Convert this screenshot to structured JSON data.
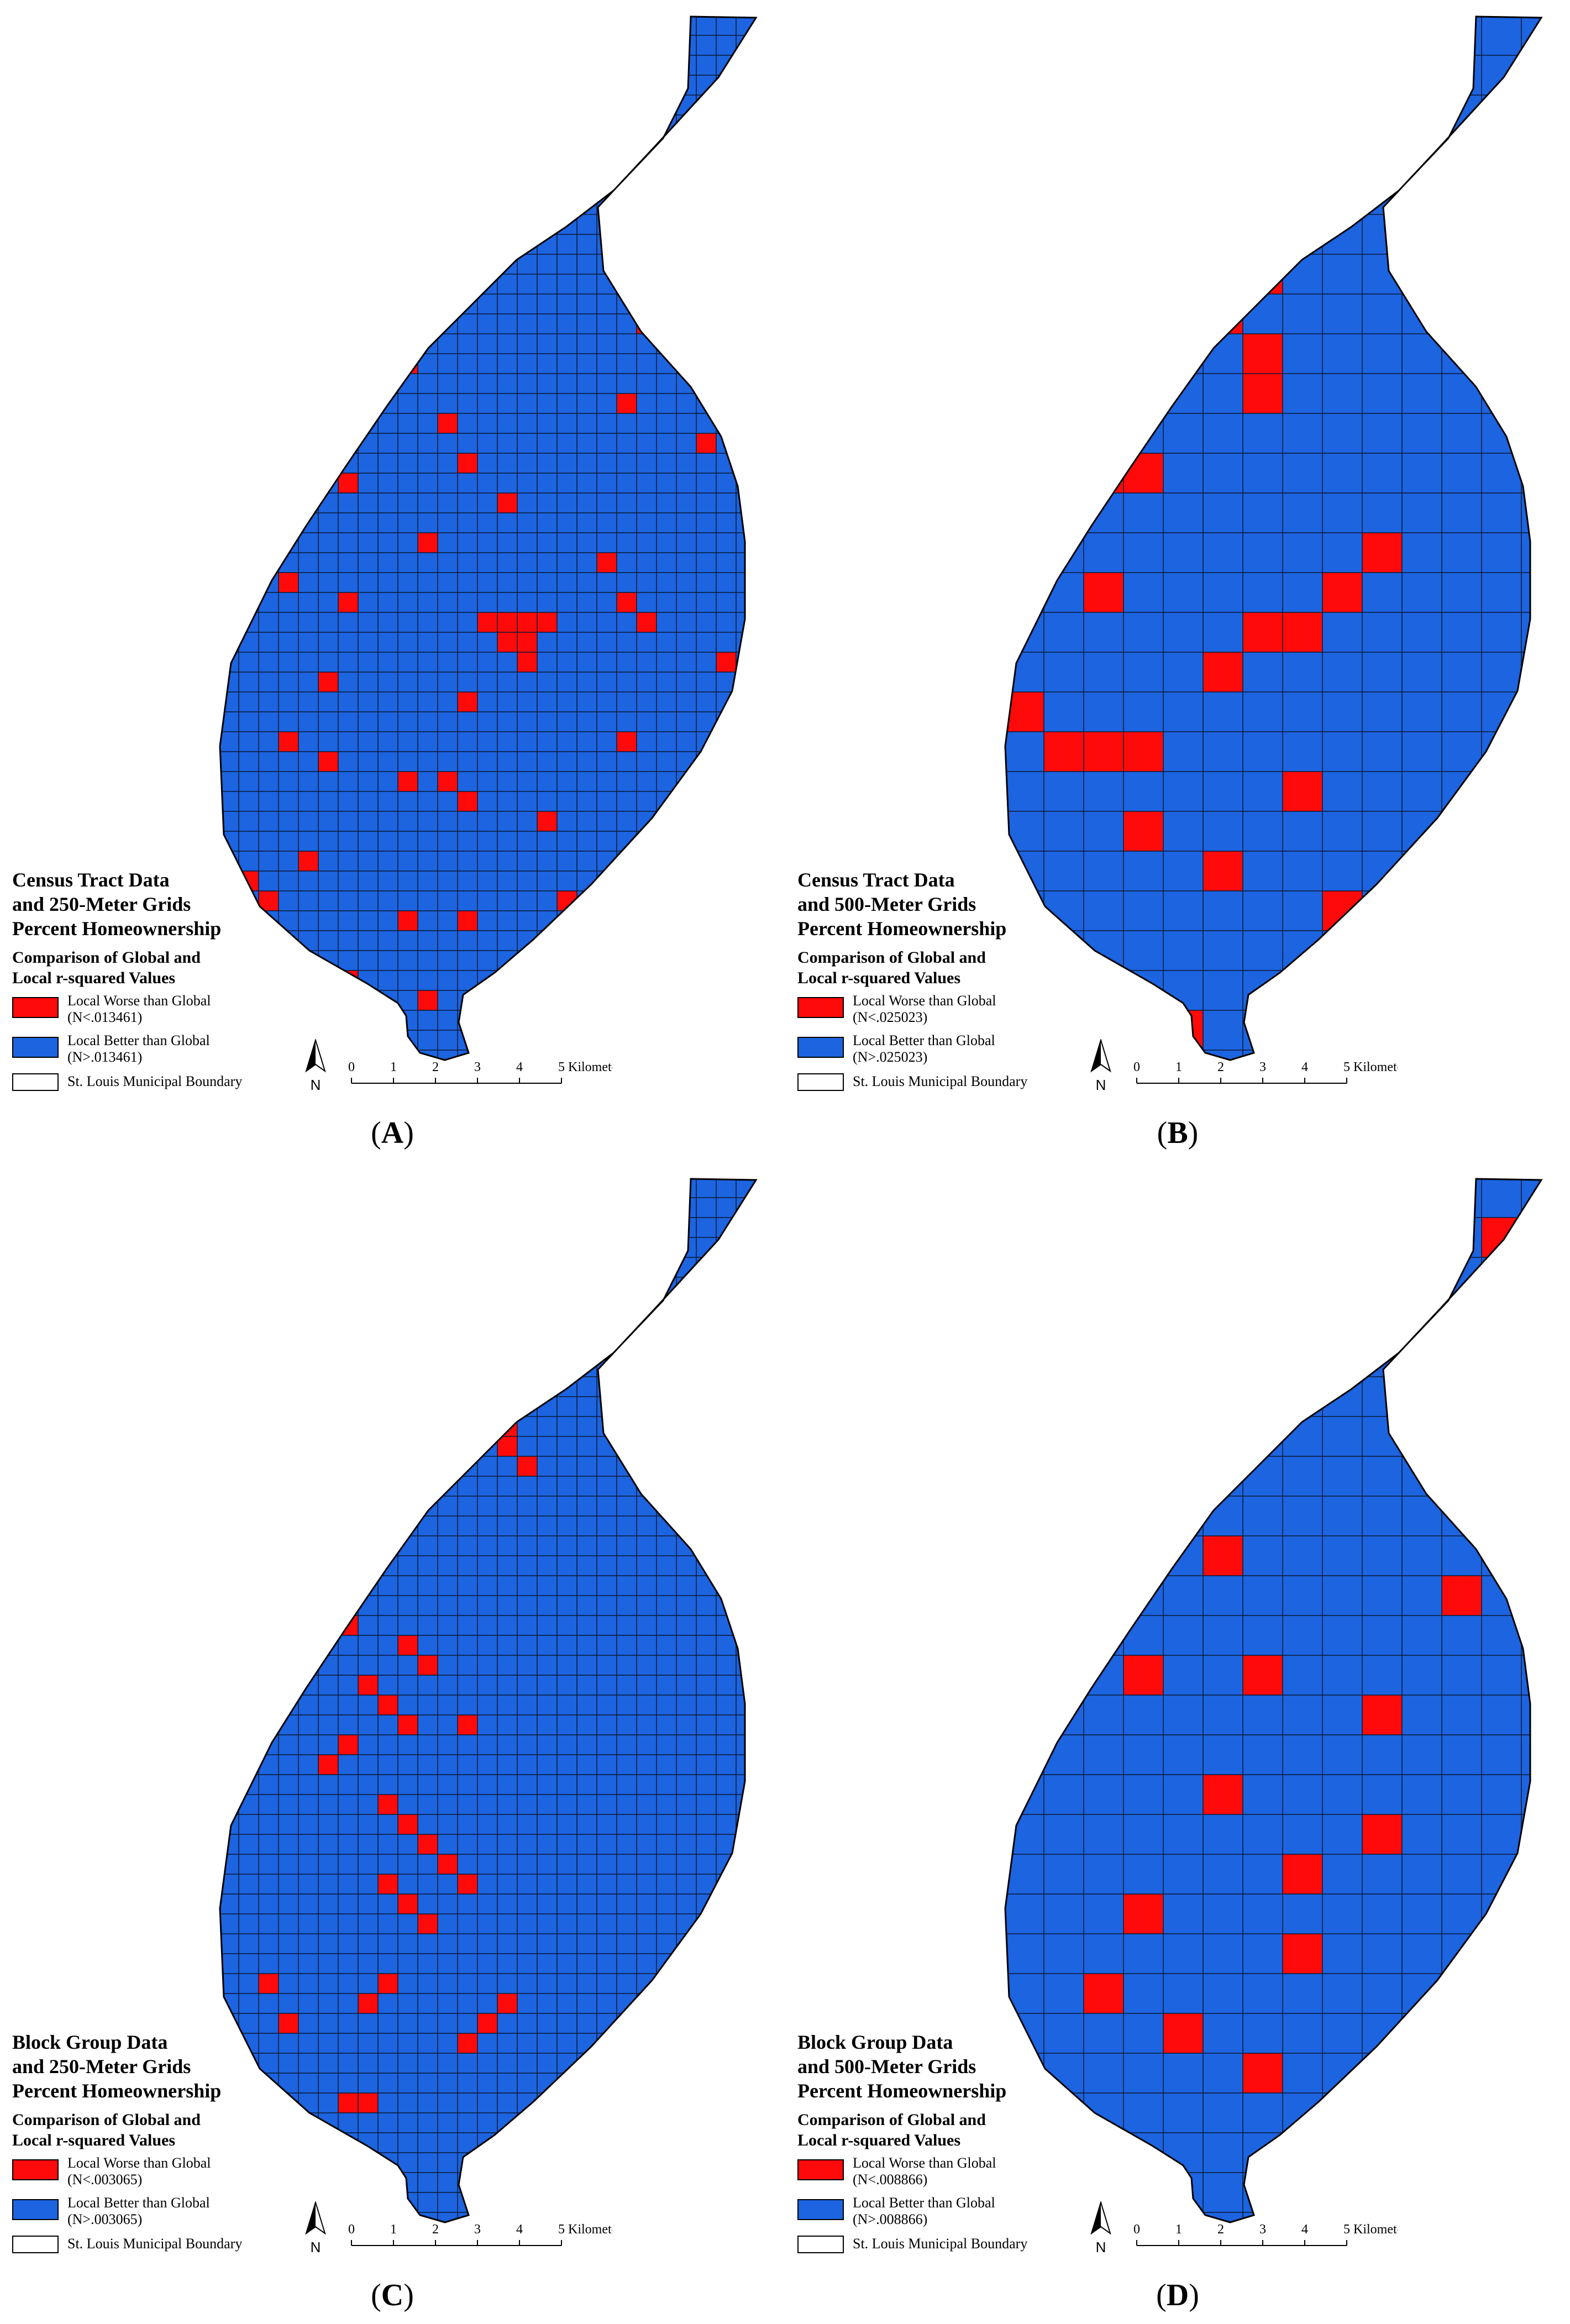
{
  "colors": {
    "worse": "#ff0a0a",
    "better": "#1c64e0",
    "grid": "#0a1a33",
    "boundary_fill": "#ffffff"
  },
  "scale_ticks": [
    "0",
    "1",
    "2",
    "3",
    "4",
    "5 Kilometers"
  ],
  "north_label": "N",
  "panels": [
    {
      "id": "A",
      "title1": "Census Tract Data",
      "title2": "and 250-Meter Grids",
      "title3": "Percent Homeownership",
      "sub1": "Comparison of Global and",
      "sub2": "Local r-squared Values",
      "worse_line1": "Local Worse than Global",
      "worse_line2": "(N<.013461)",
      "better_line1": "Local Better than Global",
      "better_line2": "(N>.013461)",
      "boundary": "St. Louis Municipal Boundary",
      "label": "A"
    },
    {
      "id": "B",
      "title1": "Census Tract Data",
      "title2": "and 500-Meter Grids",
      "title3": "Percent Homeownership",
      "sub1": "Comparison of Global and",
      "sub2": "Local r-squared Values",
      "worse_line1": "Local Worse than Global",
      "worse_line2": "(N<.025023)",
      "better_line1": "Local Better than Global",
      "better_line2": "(N>.025023)",
      "boundary": "St. Louis Municipal Boundary",
      "label": "B"
    },
    {
      "id": "C",
      "title1": "Block Group Data",
      "title2": "and 250-Meter Grids",
      "title3": "Percent Homeownership",
      "sub1": "Comparison of Global and",
      "sub2": "Local r-squared Values",
      "worse_line1": "Local Worse than Global",
      "worse_line2": "(N<.003065)",
      "better_line1": "Local Better than Global",
      "better_line2": "(N>.003065)",
      "boundary": "St. Louis Municipal Boundary",
      "label": "C"
    },
    {
      "id": "D",
      "title1": "Block Group Data",
      "title2": "and 500-Meter Grids",
      "title3": "Percent Homeownership",
      "sub1": "Comparison of Global and",
      "sub2": "Local r-squared Values",
      "worse_line1": "Local Worse than Global",
      "worse_line2": "(N<.008866)",
      "better_line1": "Local Better than Global",
      "better_line2": "(N>.008866)",
      "boundary": "St. Louis Municipal Boundary",
      "label": "D"
    }
  ]
}
